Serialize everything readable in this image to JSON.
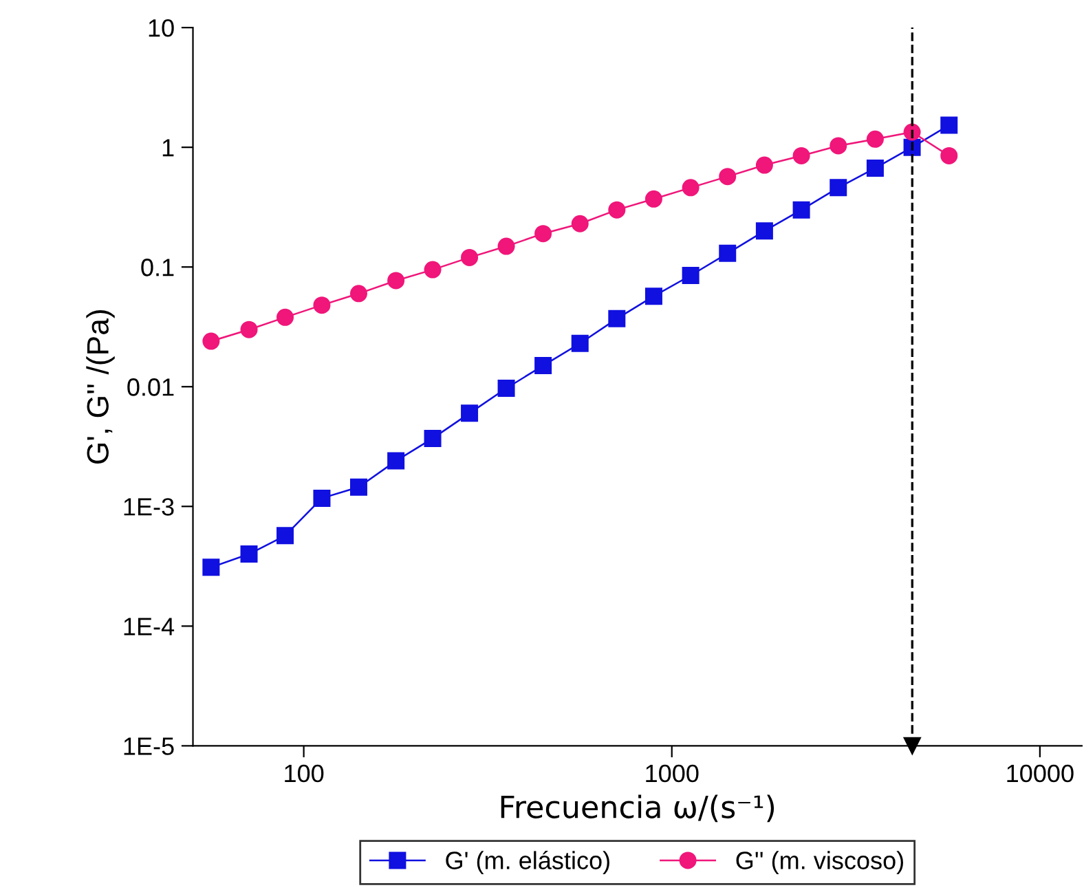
{
  "chart_data": {
    "type": "line",
    "xlabel": "Frecuencia ω/(s⁻¹)",
    "ylabel": "G', G'' /(Pa)",
    "log": "xy",
    "x": [
      56,
      71,
      89,
      112,
      141,
      178,
      224,
      282,
      355,
      447,
      563,
      709,
      893,
      1125,
      1417,
      1785,
      2249,
      2833,
      3569,
      4496,
      5664
    ],
    "series": [
      {
        "name": "G' (m. elástico)",
        "color": "#1010e0",
        "marker": "square",
        "values": [
          0.00031,
          0.0004,
          0.00057,
          0.00117,
          0.00145,
          0.0024,
          0.0037,
          0.006,
          0.0097,
          0.015,
          0.023,
          0.037,
          0.057,
          0.085,
          0.13,
          0.2,
          0.3,
          0.46,
          0.67,
          1.0,
          1.53
        ]
      },
      {
        "name": "G'' (m. viscoso)",
        "color": "#f0167a",
        "marker": "circle",
        "values": [
          0.024,
          0.03,
          0.038,
          0.048,
          0.06,
          0.077,
          0.095,
          0.12,
          0.149,
          0.19,
          0.23,
          0.3,
          0.37,
          0.46,
          0.57,
          0.71,
          0.85,
          1.03,
          1.17,
          1.34,
          0.85
        ]
      }
    ],
    "xlim": [
      50,
      13000
    ],
    "xticks": [
      100,
      1000,
      10000
    ],
    "ylim": [
      1e-05,
      10
    ],
    "yticks": [
      {
        "value": 1e-05,
        "label": "1E-5"
      },
      {
        "value": 0.0001,
        "label": "1E-4"
      },
      {
        "value": 0.001,
        "label": "1E-3"
      },
      0.01,
      0.1,
      1,
      10
    ],
    "ref_lines": [
      {
        "axis": "x",
        "value": 4500,
        "line_style": "dashed",
        "color": "#000000"
      }
    ],
    "legend": "bottom",
    "grid": false,
    "line_style": "solid"
  }
}
